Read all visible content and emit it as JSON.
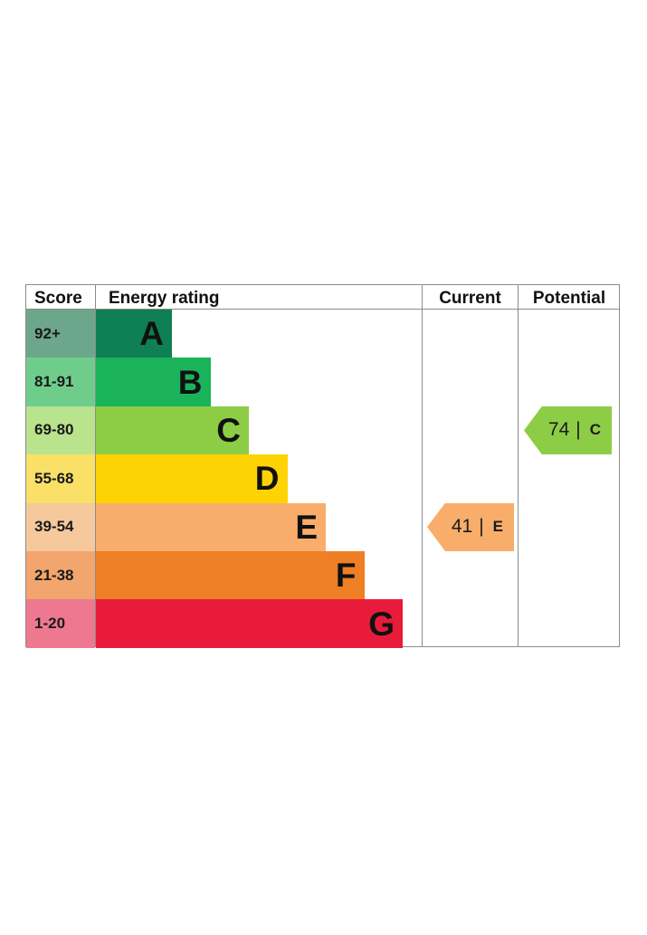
{
  "chart_data": {
    "type": "table",
    "headers": {
      "score": "Score",
      "rating": "Energy rating",
      "current": "Current",
      "potential": "Potential"
    },
    "bands": [
      {
        "range": "92+",
        "letter": "A",
        "color": "#0f7f55",
        "score_color": "#6ca78c"
      },
      {
        "range": "81-91",
        "letter": "B",
        "color": "#1bb35a",
        "score_color": "#6fcd8c"
      },
      {
        "range": "69-80",
        "letter": "C",
        "color": "#8dcd46",
        "score_color": "#b9e38d"
      },
      {
        "range": "55-68",
        "letter": "D",
        "color": "#fdd304",
        "score_color": "#fbe068"
      },
      {
        "range": "39-54",
        "letter": "E",
        "color": "#f9ad6b",
        "score_color": "#f6c99c"
      },
      {
        "range": "21-38",
        "letter": "F",
        "color": "#ee7f24",
        "score_color": "#f2a56c"
      },
      {
        "range": "1-20",
        "letter": "G",
        "color": "#e81b3b",
        "score_color": "#ee7890"
      }
    ],
    "current": {
      "value": 41,
      "letter": "E",
      "separator": "|",
      "color": "#f9ad6b"
    },
    "potential": {
      "value": 74,
      "letter": "C",
      "separator": "|",
      "color": "#8dcd46"
    }
  }
}
